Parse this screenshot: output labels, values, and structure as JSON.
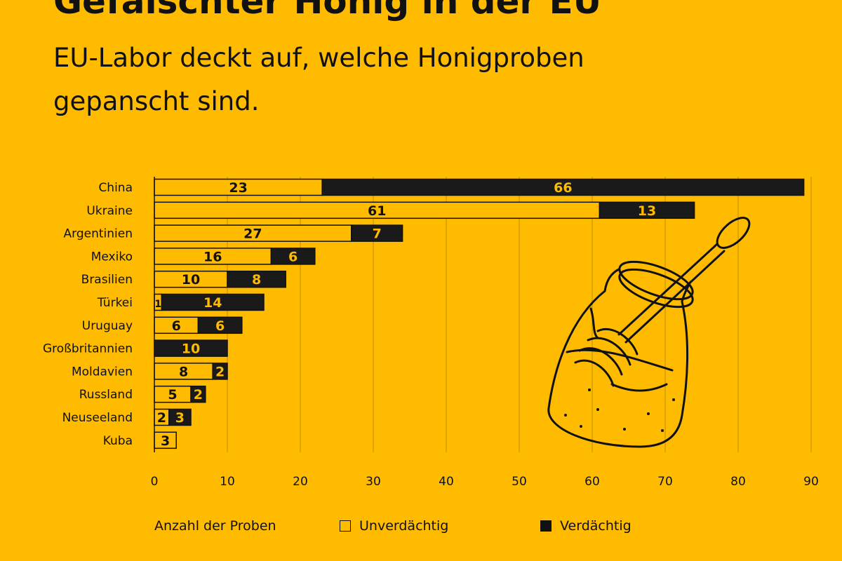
{
  "header": {
    "title": "Gefälschter Honig in der EU",
    "subtitle": "EU-Labor deckt auf, welche Honigproben gepanscht sind."
  },
  "colors": {
    "background": "#FFBB00",
    "unsuspicious": "#FFBB00",
    "suspicious": "#1A1A1A",
    "ink": "#111111"
  },
  "chart_data": {
    "type": "bar",
    "orientation": "horizontal",
    "stacked": true,
    "categories": [
      "China",
      "Ukraine",
      "Argentinien",
      "Mexiko",
      "Brasilien",
      "Türkei",
      "Uruguay",
      "Großbritannien",
      "Moldavien",
      "Russland",
      "Neuseeland",
      "Kuba"
    ],
    "series": [
      {
        "name": "Unverdächtig",
        "values": [
          23,
          61,
          27,
          16,
          10,
          1,
          6,
          0,
          8,
          5,
          2,
          3
        ]
      },
      {
        "name": "Verdächtig",
        "values": [
          66,
          13,
          7,
          6,
          8,
          14,
          6,
          10,
          2,
          2,
          3,
          0
        ]
      }
    ],
    "xlabel": "Anzahl der Proben",
    "ylabel": "",
    "xlim": [
      0,
      90
    ],
    "xticks": [
      0,
      10,
      20,
      30,
      40,
      50,
      60,
      70,
      80,
      90
    ],
    "grid": "vertical",
    "legend_position": "bottom",
    "decoration_icon": "honey-jar-with-dipper-icon"
  }
}
